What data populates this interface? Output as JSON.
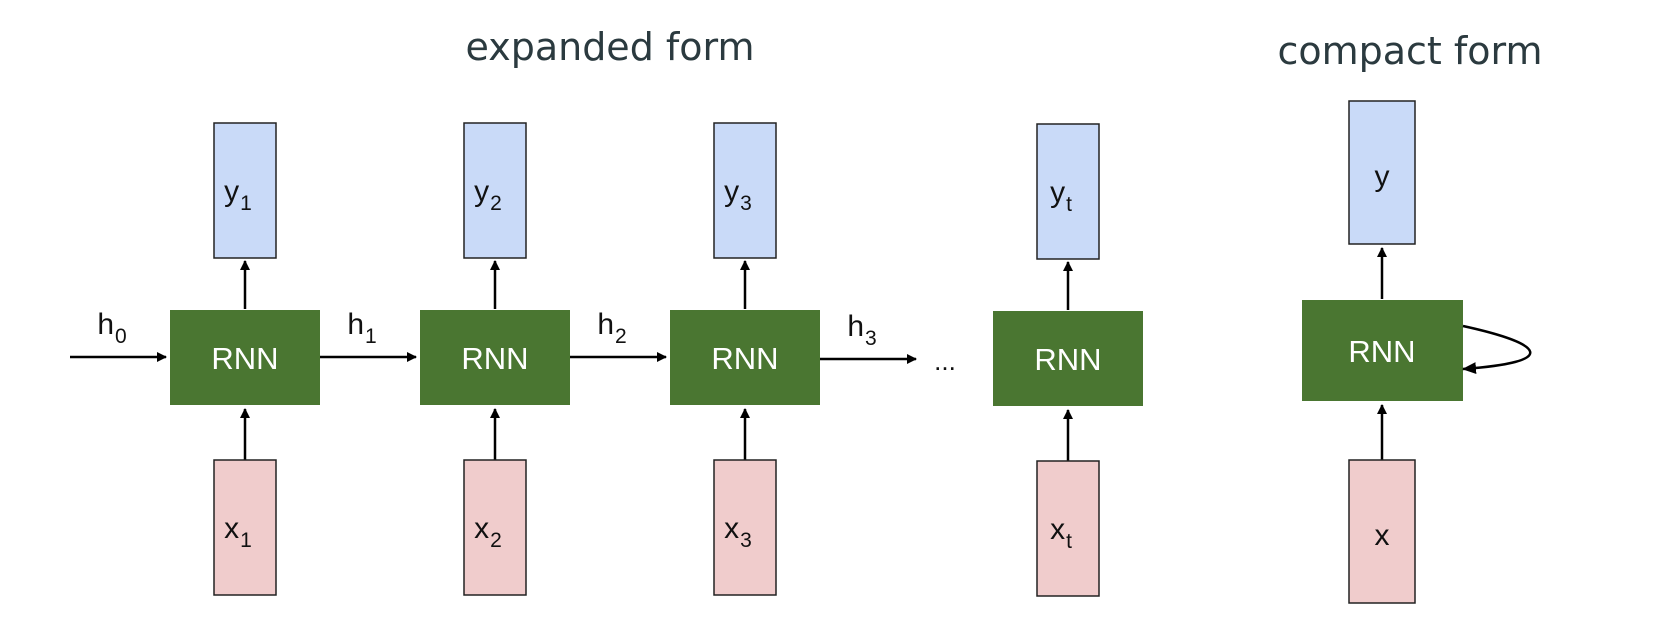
{
  "titles": {
    "expanded": "expanded form",
    "compact": "compact form"
  },
  "cells": [
    {
      "rnn": "RNN",
      "y_base": "y",
      "y_sub": "1",
      "x_base": "x",
      "x_sub": "1"
    },
    {
      "rnn": "RNN",
      "y_base": "y",
      "y_sub": "2",
      "x_base": "x",
      "x_sub": "2"
    },
    {
      "rnn": "RNN",
      "y_base": "y",
      "y_sub": "3",
      "x_base": "x",
      "x_sub": "3"
    },
    {
      "rnn": "RNN",
      "y_base": "y",
      "y_sub": "t",
      "x_base": "x",
      "x_sub": "t"
    }
  ],
  "hidden": [
    {
      "base": "h",
      "sub": "0"
    },
    {
      "base": "h",
      "sub": "1"
    },
    {
      "base": "h",
      "sub": "2"
    },
    {
      "base": "h",
      "sub": "3"
    }
  ],
  "ellipsis": "...",
  "compact": {
    "rnn": "RNN",
    "y": "y",
    "x": "x"
  },
  "colors": {
    "rnn_fill": "#4a7631",
    "output_fill": "#c9daf8",
    "input_fill": "#f0cccc"
  }
}
